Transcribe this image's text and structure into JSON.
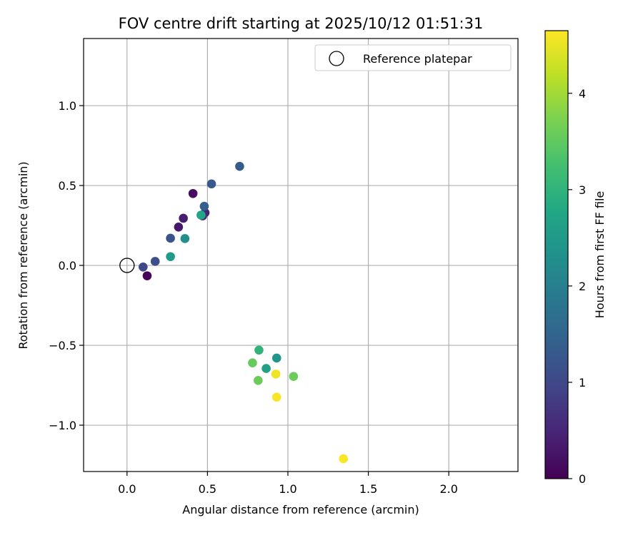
{
  "chart_data": {
    "type": "scatter",
    "title": "FOV centre drift starting at 2025/10/12 01:51:31",
    "xlabel": "Angular distance from reference (arcmin)",
    "ylabel": "Rotation from reference (arcmin)",
    "xlim": [
      -0.27,
      2.43
    ],
    "ylim": [
      -1.29,
      1.42
    ],
    "xticks": [
      0.0,
      0.5,
      1.0,
      1.5,
      2.0
    ],
    "xtick_labels": [
      "0.0",
      "0.5",
      "1.0",
      "1.5",
      "2.0"
    ],
    "yticks": [
      -1.0,
      -0.5,
      0.0,
      0.5,
      1.0
    ],
    "ytick_labels": [
      "−1.0",
      "−0.5",
      "0.0",
      "0.5",
      "1.0"
    ],
    "grid": true,
    "legend": {
      "position": "top-right",
      "label": "Reference platepar"
    },
    "reference_point": {
      "x": 0.0,
      "y": 0.0
    },
    "colorbar": {
      "label": "Hours from first FF file",
      "min": 0.0,
      "max": 4.65,
      "ticks": [
        0,
        1,
        2,
        3,
        4
      ],
      "tick_labels": [
        "0",
        "1",
        "2",
        "3",
        "4"
      ],
      "colormap": "viridis"
    },
    "points": [
      {
        "x": 0.125,
        "y": -0.065,
        "c": 0.05
      },
      {
        "x": 0.41,
        "y": 0.45,
        "c": 0.15
      },
      {
        "x": 0.32,
        "y": 0.24,
        "c": 0.3
      },
      {
        "x": 0.35,
        "y": 0.295,
        "c": 0.4
      },
      {
        "x": 0.485,
        "y": 0.33,
        "c": 0.45
      },
      {
        "x": 0.47,
        "y": 0.31,
        "c": 0.6
      },
      {
        "x": 0.1,
        "y": -0.01,
        "c": 1.0
      },
      {
        "x": 0.175,
        "y": 0.025,
        "c": 1.1
      },
      {
        "x": 0.27,
        "y": 0.17,
        "c": 1.2
      },
      {
        "x": 0.525,
        "y": 0.51,
        "c": 1.3
      },
      {
        "x": 0.7,
        "y": 0.62,
        "c": 1.35
      },
      {
        "x": 0.48,
        "y": 0.37,
        "c": 1.4
      },
      {
        "x": 0.36,
        "y": 0.168,
        "c": 2.3
      },
      {
        "x": 0.27,
        "y": 0.055,
        "c": 2.5
      },
      {
        "x": 0.46,
        "y": 0.315,
        "c": 2.7
      },
      {
        "x": 0.93,
        "y": -0.58,
        "c": 2.4
      },
      {
        "x": 0.865,
        "y": -0.645,
        "c": 2.6
      },
      {
        "x": 0.82,
        "y": -0.53,
        "c": 3.0
      },
      {
        "x": 0.78,
        "y": -0.61,
        "c": 3.55
      },
      {
        "x": 0.815,
        "y": -0.72,
        "c": 3.6
      },
      {
        "x": 1.035,
        "y": -0.695,
        "c": 3.6
      },
      {
        "x": 0.925,
        "y": -0.68,
        "c": 4.55
      },
      {
        "x": 0.93,
        "y": -0.825,
        "c": 4.6
      },
      {
        "x": 1.345,
        "y": -1.21,
        "c": 4.62
      }
    ]
  }
}
